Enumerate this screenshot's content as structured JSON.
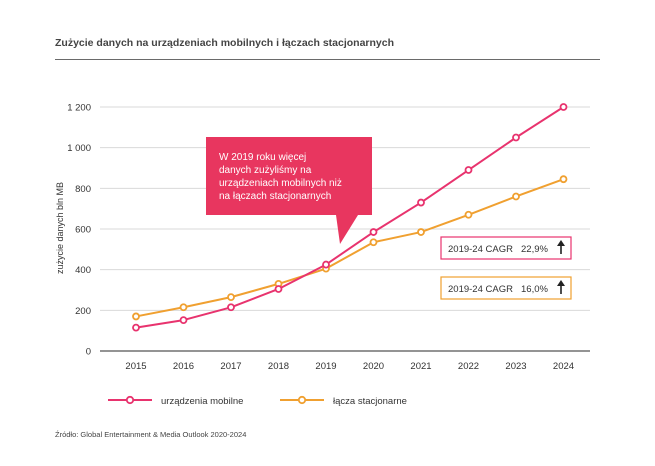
{
  "title": "Zużycie danych na urządzeniach mobilnych i łączach stacjonarnych",
  "source": "Źródło: Global Entertainment & Media Outlook 2020-2024",
  "colors": {
    "mobile": "#e8336e",
    "fixed": "#f0a030",
    "grid": "#d9d9d9",
    "callout": "#e8365f",
    "axis": "#555555"
  },
  "chart_data": {
    "type": "line",
    "ylabel": "zużycie danych bln MB",
    "xlabel": "",
    "ylim": [
      0,
      1200
    ],
    "yticks": [
      0,
      200,
      400,
      600,
      800,
      1000,
      1200
    ],
    "ytick_labels": [
      "0",
      "200",
      "400",
      "600",
      "800",
      "1 000",
      "1 200"
    ],
    "grid": true,
    "legend_position": "bottom-left",
    "categories": [
      "2015",
      "2016",
      "2017",
      "2018",
      "2019",
      "2020",
      "2021",
      "2022",
      "2023",
      "2024"
    ],
    "series": [
      {
        "name": "urządzenia mobilne",
        "color": "#e8336e",
        "values": [
          115,
          152,
          215,
          305,
          425,
          585,
          730,
          890,
          1050,
          1200
        ]
      },
      {
        "name": "łącza stacjonarne",
        "color": "#f0a030",
        "values": [
          170,
          215,
          265,
          330,
          405,
          535,
          585,
          670,
          760,
          845
        ]
      }
    ],
    "annotations": {
      "callout": "W 2019 roku więcej danych zużyliśmy na urządzeniach mobilnych niż na łączach stacjonarnych",
      "cagr_mobile": {
        "label": "2019-24 CAGR",
        "value": "22,9%"
      },
      "cagr_fixed": {
        "label": "2019-24 CAGR",
        "value": "16,0%"
      }
    }
  }
}
